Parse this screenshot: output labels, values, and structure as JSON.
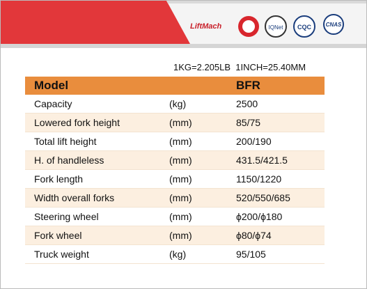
{
  "header": {
    "brand": "LiftMach",
    "certifications": [
      "IQNet",
      "CQC",
      "CNAS"
    ]
  },
  "conversion": "1KG=2.205LB  1INCH=25.40MM",
  "table": {
    "columns": [
      "Model",
      "BFR"
    ],
    "rows": [
      [
        "Capacity",
        "(kg)",
        "2500"
      ],
      [
        "Lowered fork height",
        "(mm)",
        "85/75"
      ],
      [
        "Total lift height",
        "(mm)",
        "200/190"
      ],
      [
        "H. of handleless",
        "(mm)",
        "431.5/421.5"
      ],
      [
        "Fork length",
        "(mm)",
        "1150/1220"
      ],
      [
        "Width overall forks",
        "(mm)",
        "520/550/685"
      ],
      [
        "Steering wheel",
        "(mm)",
        "ϕ200/ϕ180"
      ],
      [
        "Fork wheel",
        "(mm)",
        "ϕ80/ϕ74"
      ],
      [
        "Truck weight",
        "(kg)",
        "95/105"
      ]
    ]
  }
}
